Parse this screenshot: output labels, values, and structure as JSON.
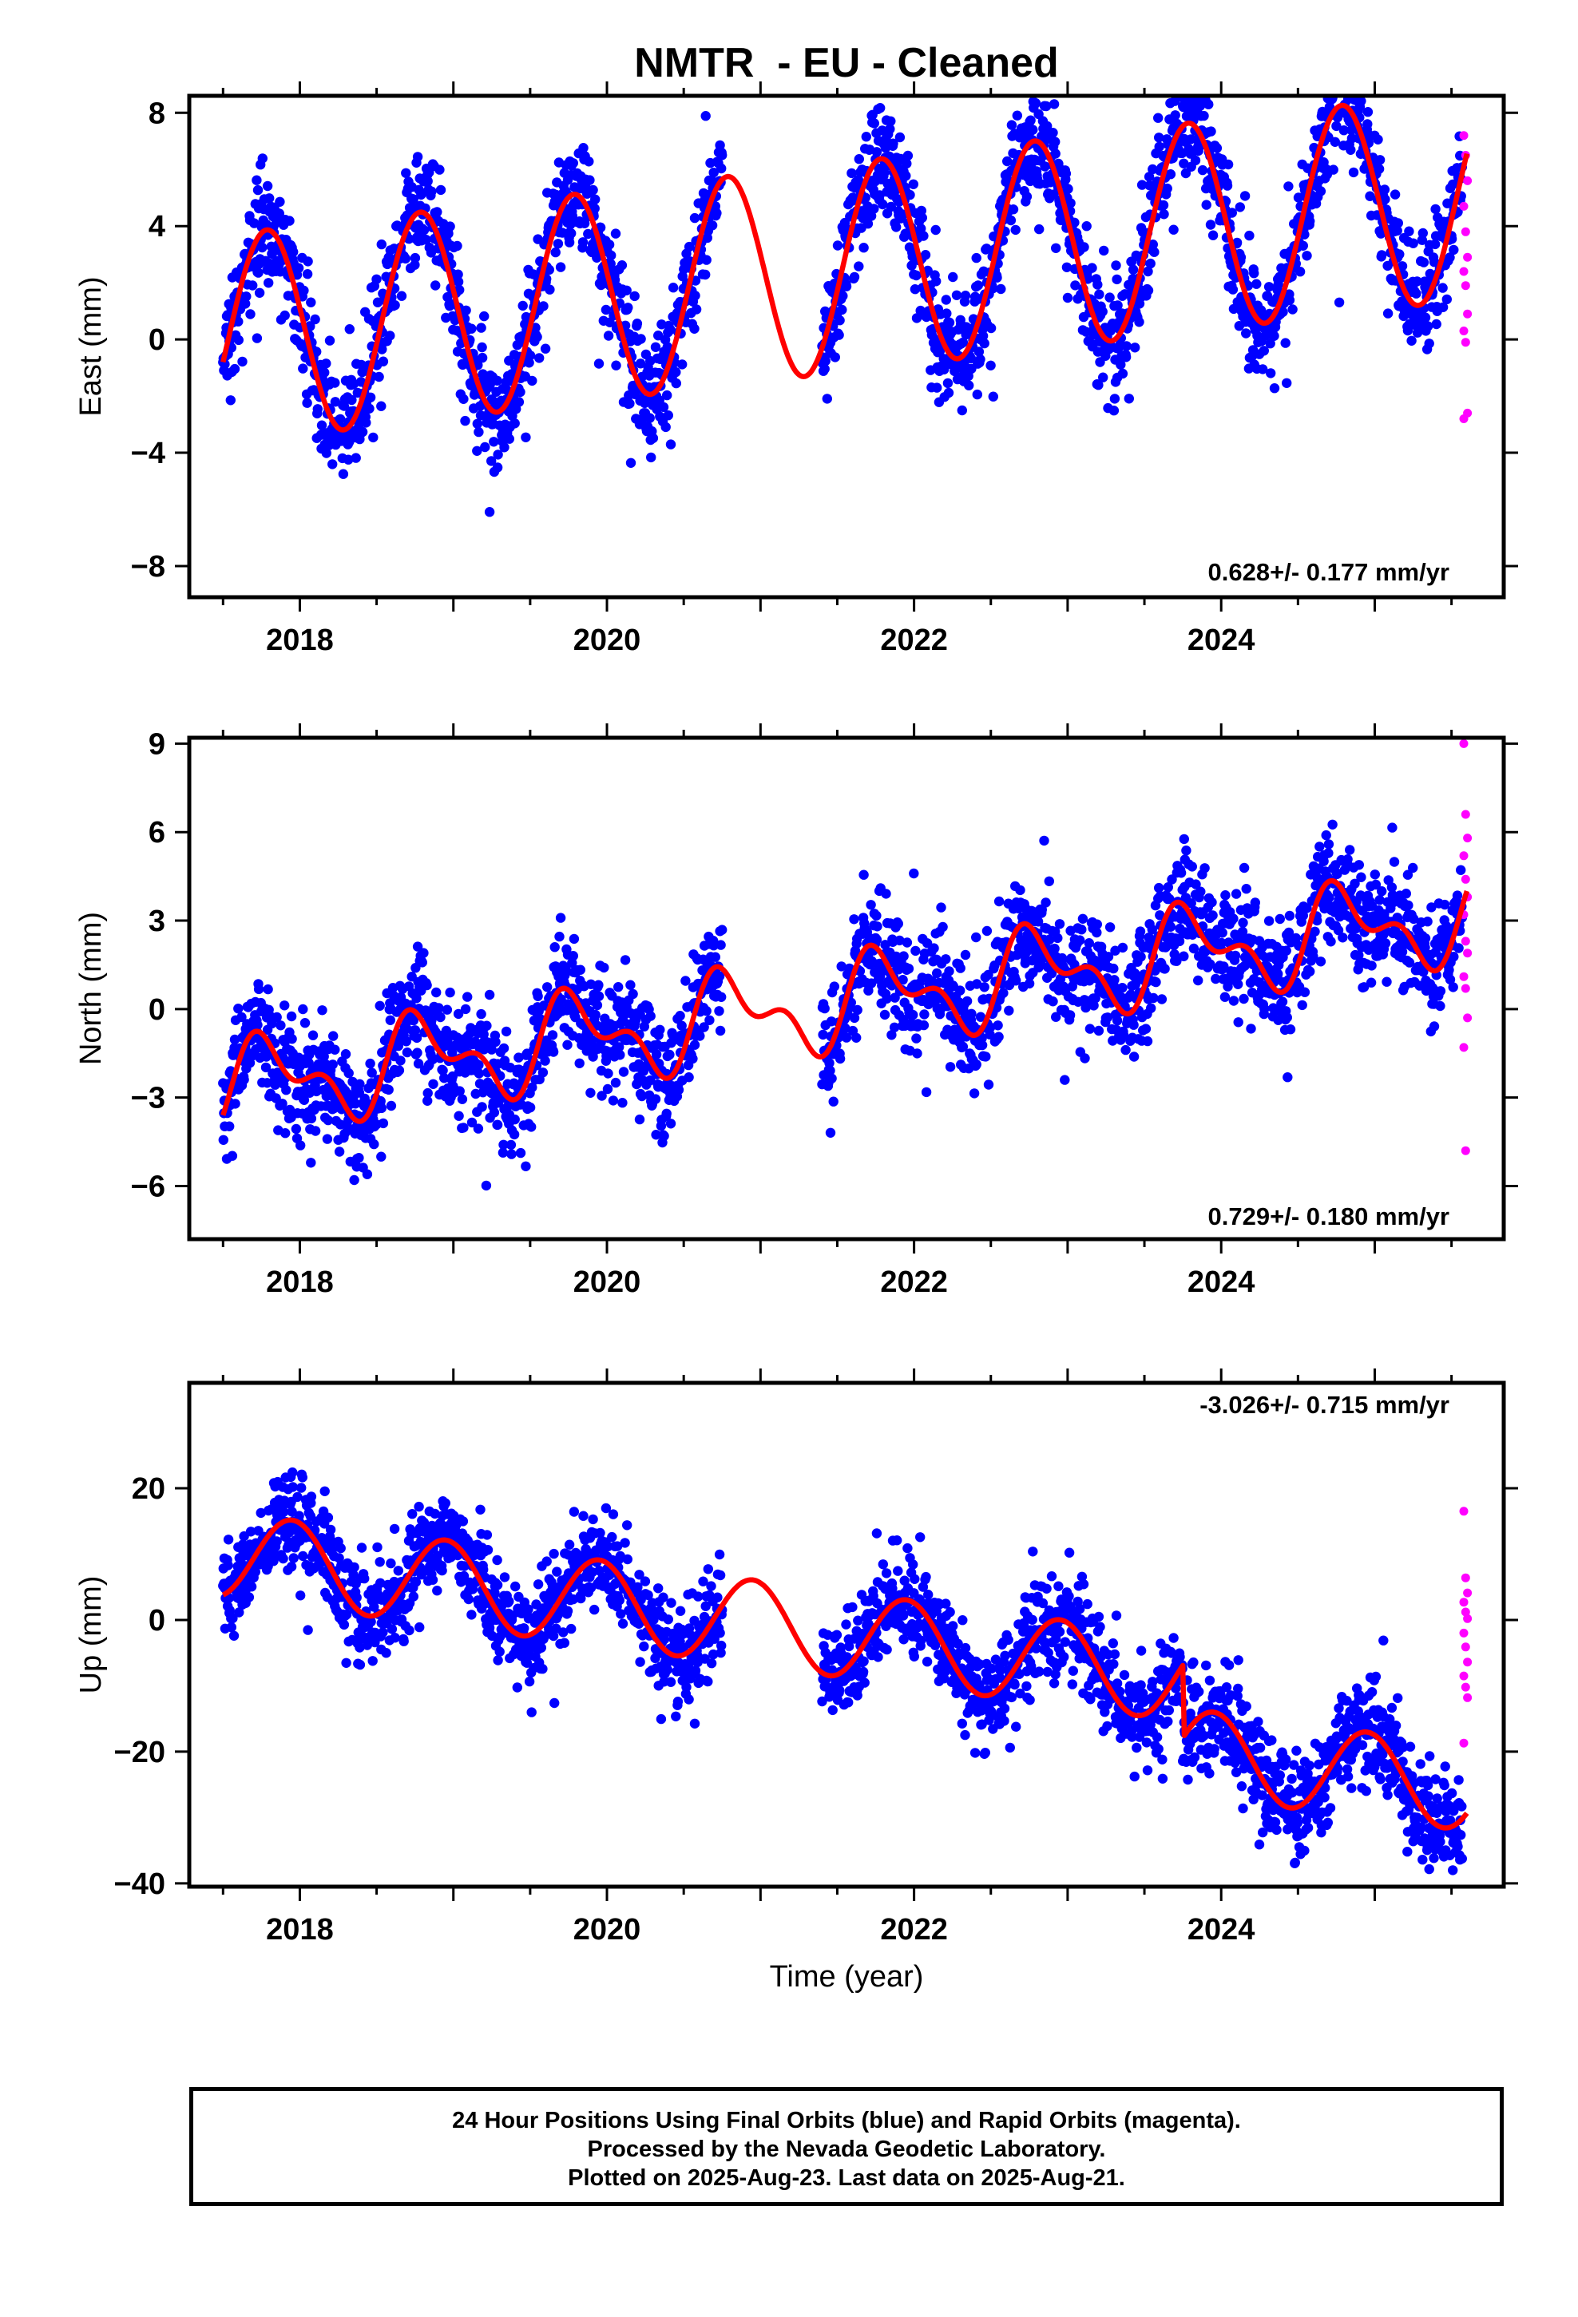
{
  "title": "NMTR  - EU - Cleaned",
  "xlabel": "Time (year)",
  "x_tick_labels": [
    "2018",
    "2020",
    "2022",
    "2024"
  ],
  "colors": {
    "final_orbits": "#0000ff",
    "rapid_orbits": "#ff00ff",
    "fit": "#ff0000",
    "axes": "#000000"
  },
  "footer": {
    "line1": "24 Hour Positions Using Final Orbits (blue) and Rapid Orbits (magenta).",
    "line2": "Processed by the Nevada Geodetic Laboratory.",
    "line3": "Plotted on 2025-Aug-23. Last data on 2025-Aug-21."
  },
  "chart_data": [
    {
      "type": "scatter",
      "ylabel": "East (mm)",
      "rate_label": "0.628+/- 0.177 mm/yr",
      "xlim": [
        2017.28,
        2025.84
      ],
      "ylim": [
        -9.1,
        8.6
      ],
      "y_ticks": [
        -8,
        -4,
        0,
        4,
        8
      ],
      "y_tick_labels": [
        "−8",
        "−4",
        "0",
        "4",
        "8"
      ],
      "trend": {
        "value_at_2017_5": 0.0,
        "rate": 0.628
      },
      "annual": {
        "sin": -3.6,
        "cos": 0.8
      },
      "semiannual": {
        "sin": 0.0,
        "cos": 0.0
      },
      "gap": [
        2020.75,
        2021.4
      ],
      "noise": 1.0,
      "rapid_y": [
        7.2,
        6.5,
        5.6,
        4.7,
        3.8,
        2.9,
        2.4,
        1.9,
        0.9,
        0.3,
        -0.1,
        -2.6,
        -2.8
      ]
    },
    {
      "type": "scatter",
      "ylabel": "North (mm)",
      "rate_label": "0.729+/- 0.180 mm/yr",
      "xlim": [
        2017.28,
        2025.84
      ],
      "ylim": [
        -7.8,
        9.2
      ],
      "y_ticks": [
        -6,
        -3,
        0,
        3,
        6,
        9
      ],
      "y_tick_labels": [
        "−6",
        "−3",
        "0",
        "3",
        "6",
        "9"
      ],
      "trend": {
        "value_at_2017_5": -2.7,
        "rate": 0.729
      },
      "annual": {
        "sin": -1.2,
        "cos": 0.4
      },
      "semiannual": {
        "sin": 0.6,
        "cos": -0.5
      },
      "gap": [
        2020.75,
        2021.4
      ],
      "noise": 0.95,
      "rapid_y": [
        9.0,
        6.6,
        5.8,
        5.2,
        4.4,
        3.8,
        3.2,
        2.3,
        1.9,
        1.1,
        0.7,
        -0.3,
        -1.3,
        -4.8
      ]
    },
    {
      "type": "scatter",
      "ylabel": "Up (mm)",
      "rate_label": "-3.026+/- 0.715 mm/yr",
      "xlim": [
        2017.28,
        2025.84
      ],
      "ylim": [
        -40.5,
        36.0
      ],
      "y_ticks": [
        -40,
        -20,
        0,
        20
      ],
      "y_tick_labels": [
        "−40",
        "−20",
        "0",
        "20"
      ],
      "trend": {
        "value_at_2017_5": 10.0,
        "rate": -3.026
      },
      "annual": {
        "sin": -2.0,
        "cos": 6.2
      },
      "semiannual": {
        "sin": 0.0,
        "cos": 0.0
      },
      "offset": {
        "year": 2023.75,
        "size": -11.0
      },
      "gap": [
        2020.75,
        2021.4
      ],
      "noise": 3.6,
      "rapid_y": [
        16.5,
        6.4,
        4.1,
        2.7,
        1.2,
        0.2,
        -2.0,
        -4.1,
        -6.4,
        -8.5,
        -10.2,
        -11.8,
        -18.7
      ]
    }
  ]
}
